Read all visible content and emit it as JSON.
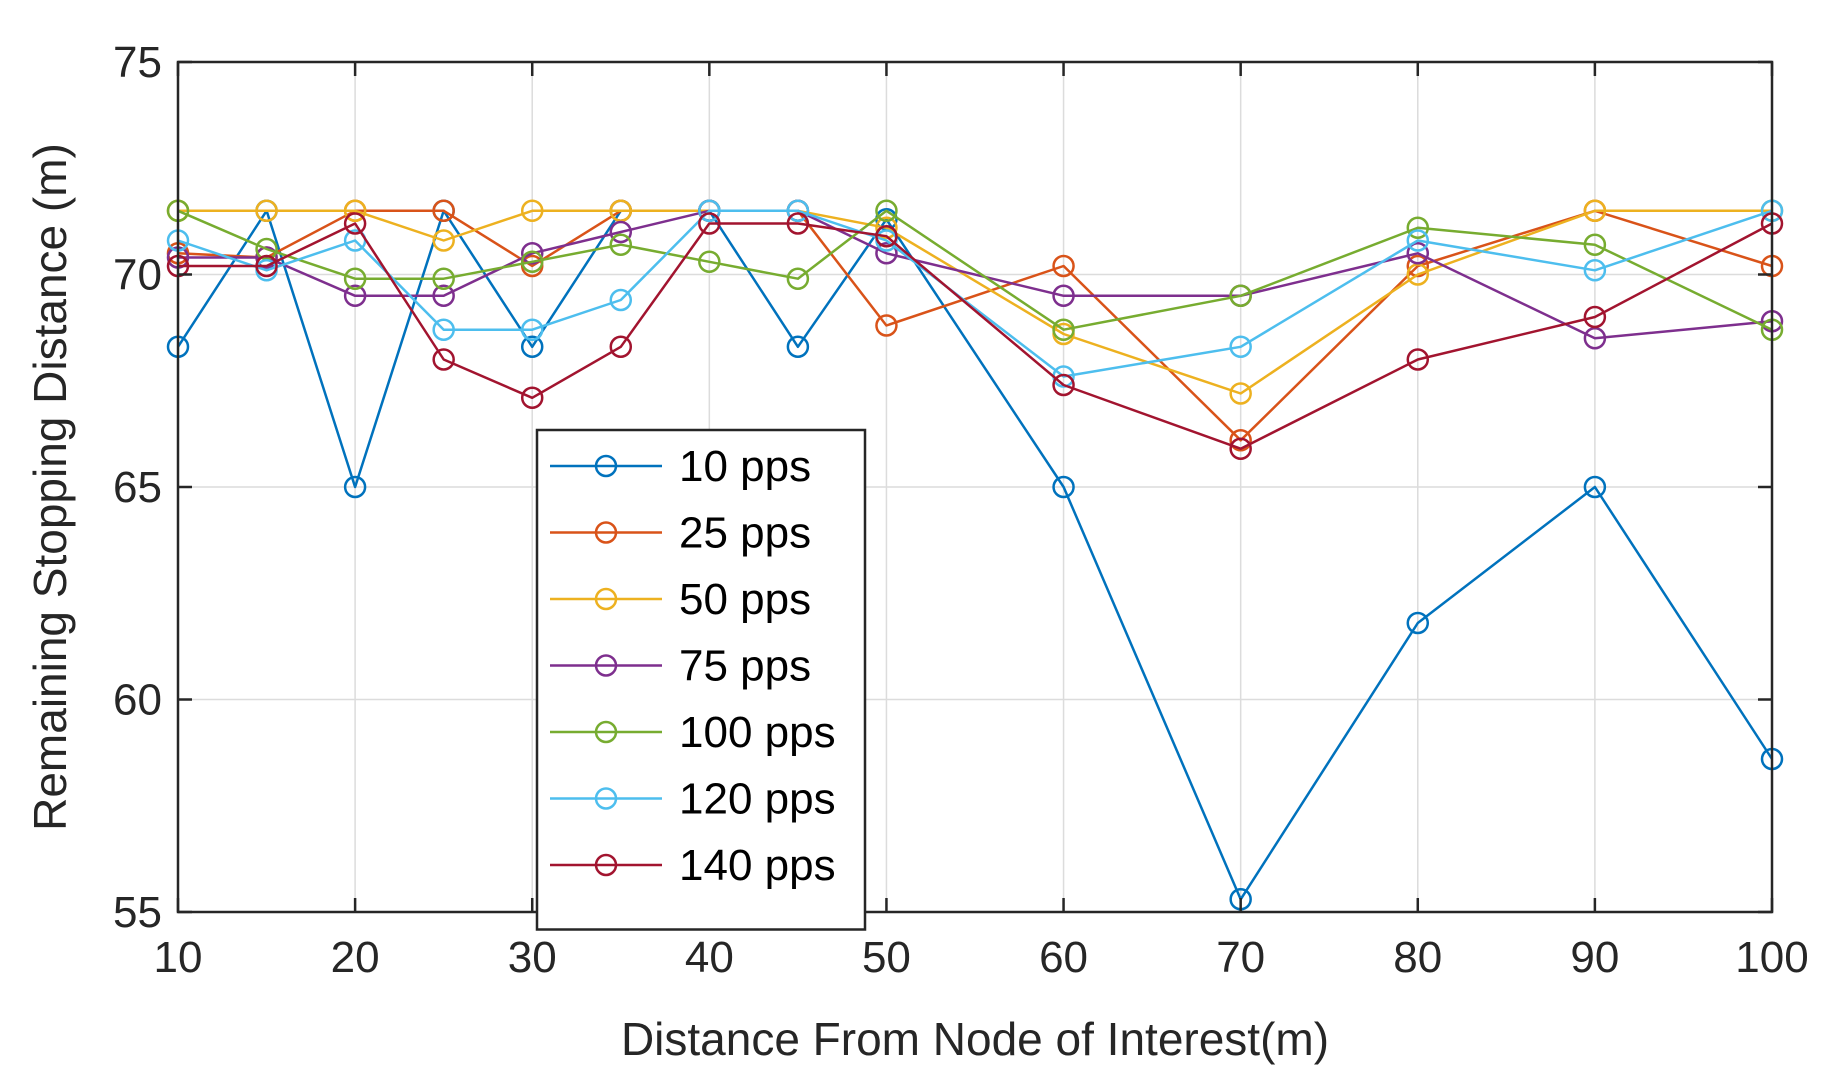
{
  "chart_data": {
    "type": "line",
    "title": "",
    "xlabel": "Distance From Node of Interest(m)",
    "ylabel": "Remaining Stopping Distance (m)",
    "xlim": [
      10,
      100
    ],
    "ylim": [
      55,
      75
    ],
    "xticks": [
      10,
      20,
      30,
      40,
      50,
      60,
      70,
      80,
      90,
      100
    ],
    "yticks": [
      55,
      60,
      65,
      70,
      75
    ],
    "grid": true,
    "legend_position": "center-left",
    "marker": "circle",
    "x": [
      10,
      15,
      20,
      25,
      30,
      35,
      40,
      45,
      50,
      60,
      70,
      80,
      90,
      100
    ],
    "series": [
      {
        "name": "10 pps",
        "color": "#0072BD",
        "values": [
          68.3,
          71.5,
          65.0,
          71.5,
          68.3,
          71.5,
          71.5,
          68.3,
          71.3,
          65.0,
          55.3,
          61.8,
          65.0,
          58.6
        ]
      },
      {
        "name": "25 pps",
        "color": "#D95319",
        "values": [
          70.5,
          70.4,
          71.5,
          71.5,
          70.2,
          71.5,
          71.5,
          71.5,
          68.8,
          70.2,
          66.1,
          70.2,
          71.5,
          70.2
        ]
      },
      {
        "name": "50 pps",
        "color": "#EDB120",
        "values": [
          71.5,
          71.5,
          71.5,
          70.8,
          71.5,
          71.5,
          71.5,
          71.5,
          71.1,
          68.6,
          67.2,
          70.0,
          71.5,
          71.5
        ]
      },
      {
        "name": "75 pps",
        "color": "#7E2F8E",
        "values": [
          70.4,
          70.4,
          69.5,
          69.5,
          70.5,
          71.0,
          71.5,
          71.5,
          70.5,
          69.5,
          69.5,
          70.5,
          68.5,
          68.9
        ]
      },
      {
        "name": "100 pps",
        "color": "#77AC30",
        "values": [
          71.5,
          70.6,
          69.9,
          69.9,
          70.3,
          70.7,
          70.3,
          69.9,
          71.5,
          68.7,
          69.5,
          71.1,
          70.7,
          68.7
        ]
      },
      {
        "name": "120 pps",
        "color": "#4DBEEE",
        "values": [
          70.8,
          70.1,
          70.8,
          68.7,
          68.7,
          69.4,
          71.5,
          71.5,
          70.8,
          67.6,
          68.3,
          70.8,
          70.1,
          71.5
        ]
      },
      {
        "name": "140 pps",
        "color": "#A2142F",
        "values": [
          70.2,
          70.2,
          71.2,
          68.0,
          67.1,
          68.3,
          71.2,
          71.2,
          70.9,
          67.4,
          65.9,
          68.0,
          69.0,
          71.2
        ]
      }
    ]
  }
}
